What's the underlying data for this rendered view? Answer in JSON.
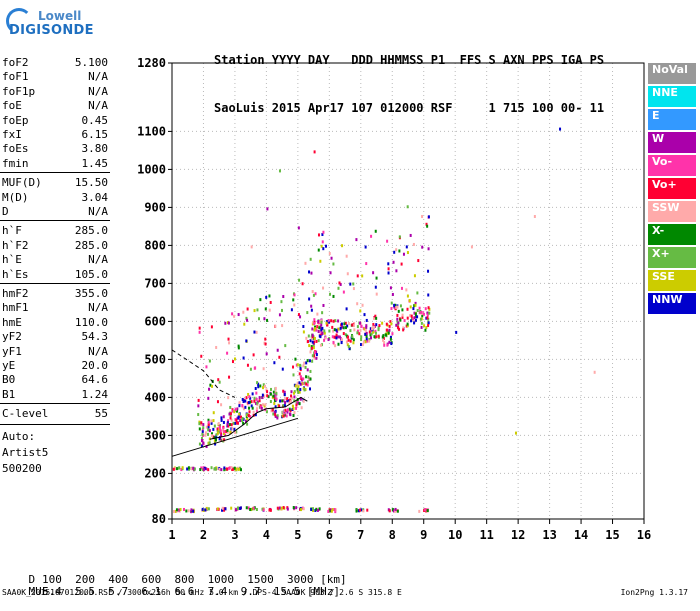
{
  "logo": {
    "line1": "Lowell",
    "line2": "DIGISONDE"
  },
  "header": {
    "line1": "Station YYYY DAY   DDD HHMMSS P1  FFS S AXN PPS IGA PS",
    "line2": "SaoLuis 2015 Apr17 107 012000 RSF     1 715 100 00- 11"
  },
  "params": [
    {
      "label": "foF2",
      "value": "5.100"
    },
    {
      "label": "foF1",
      "value": "N/A"
    },
    {
      "label": "foF1p",
      "value": "N/A"
    },
    {
      "label": "foE",
      "value": "N/A"
    },
    {
      "label": "foEp",
      "value": "0.45"
    },
    {
      "label": "fxI",
      "value": "6.15"
    },
    {
      "label": "foEs",
      "value": "3.80"
    },
    {
      "label": "fmin",
      "value": "1.45"
    },
    {
      "label": "MUF(D)",
      "value": "15.50"
    },
    {
      "label": "M(D)",
      "value": "3.04"
    },
    {
      "label": "D",
      "value": "N/A"
    },
    {
      "label": "h`F",
      "value": "285.0"
    },
    {
      "label": "h`F2",
      "value": "285.0"
    },
    {
      "label": "h`E",
      "value": "N/A"
    },
    {
      "label": "h`Es",
      "value": "105.0"
    },
    {
      "label": "hmF2",
      "value": "355.0"
    },
    {
      "label": "hmF1",
      "value": "N/A"
    },
    {
      "label": "hmE",
      "value": "110.0"
    },
    {
      "label": "yF2",
      "value": "54.3"
    },
    {
      "label": "yF1",
      "value": "N/A"
    },
    {
      "label": "yE",
      "value": "20.0"
    },
    {
      "label": "B0",
      "value": "64.6"
    },
    {
      "label": "B1",
      "value": "1.24"
    },
    {
      "label": "C-level",
      "value": "55"
    }
  ],
  "notes": {
    "auto": "Auto:",
    "artist": "Artist5",
    "version_code": "500200"
  },
  "legend": [
    {
      "label": "NoVal",
      "color": "#999999"
    },
    {
      "label": "NNE",
      "color": "#00e5ee"
    },
    {
      "label": "E",
      "color": "#3399ff"
    },
    {
      "label": "W",
      "color": "#aa00aa"
    },
    {
      "label": "Vo-",
      "color": "#ff33aa"
    },
    {
      "label": "Vo+",
      "color": "#ff0033"
    },
    {
      "label": "SSW",
      "color": "#ffaaaa"
    },
    {
      "label": "X-",
      "color": "#008800"
    },
    {
      "label": "X+",
      "color": "#66bb44"
    },
    {
      "label": "SSE",
      "color": "#cccc00"
    },
    {
      "label": "NNW",
      "color": "#0000cc"
    }
  ],
  "footer": {
    "row1_label": "D",
    "row1_values": "100  200  400  600  800  1000  1500  3000 [km]",
    "row2_label": "MUF",
    "row2_values": "5.4  5.5  5.7  6.1  6.6  7.4  9.7  15.5 [MHz]",
    "file": "SAA0K_2015107012000.RSF / 300fx256h 50 kHz 5.0 km / DPS-4 SAA0K 903 / 2.6 S 315.8 E",
    "version": "Ion2Png 1.3.17"
  },
  "chart_data": {
    "type": "scatter",
    "title": "",
    "xlabel": "",
    "ylabel": "",
    "xlim": [
      1,
      16
    ],
    "ylim": [
      80,
      1280
    ],
    "x_ticks": [
      1,
      2,
      3,
      4,
      5,
      6,
      7,
      8,
      9,
      10,
      11,
      12,
      13,
      14,
      15,
      16
    ],
    "y_ticks": [
      80,
      200,
      300,
      400,
      500,
      600,
      700,
      800,
      900,
      1000,
      1100,
      1280
    ],
    "grid": "dotted",
    "series": [
      {
        "name": "F-trace",
        "points": [
          [
            2.0,
            290
          ],
          [
            2.3,
            295
          ],
          [
            2.6,
            310
          ],
          [
            2.9,
            330
          ],
          [
            3.2,
            350
          ],
          [
            3.5,
            370
          ],
          [
            3.8,
            390
          ],
          [
            4.1,
            380
          ],
          [
            4.4,
            370
          ],
          [
            4.7,
            375
          ],
          [
            5.0,
            395
          ],
          [
            5.2,
            440
          ],
          [
            5.4,
            520
          ],
          [
            5.6,
            560
          ],
          [
            5.8,
            570
          ],
          [
            6.2,
            560
          ],
          [
            6.6,
            550
          ],
          [
            7.0,
            560
          ],
          [
            7.4,
            570
          ],
          [
            7.8,
            560
          ],
          [
            8.2,
            600
          ],
          [
            8.6,
            610
          ],
          [
            9.0,
            600
          ]
        ]
      },
      {
        "name": "Es-trace",
        "points": [
          [
            1.2,
            215
          ],
          [
            1.6,
            215
          ],
          [
            2.0,
            215
          ],
          [
            2.4,
            215
          ],
          [
            2.8,
            215
          ],
          [
            3.0,
            215
          ]
        ]
      },
      {
        "name": "E-trace",
        "points": [
          [
            1.1,
            105
          ],
          [
            1.5,
            105
          ],
          [
            2.0,
            108
          ],
          [
            2.5,
            108
          ],
          [
            3.0,
            110
          ],
          [
            3.5,
            110
          ],
          [
            4.0,
            108
          ],
          [
            4.5,
            110
          ],
          [
            5.0,
            110
          ],
          [
            5.5,
            108
          ],
          [
            6.0,
            105
          ],
          [
            7.0,
            105
          ],
          [
            8.0,
            105
          ],
          [
            9.0,
            105
          ]
        ]
      },
      {
        "name": "scatter-high",
        "points": [
          [
            4.0,
            900
          ],
          [
            4.4,
            1000
          ],
          [
            5.0,
            850
          ],
          [
            5.5,
            1050
          ],
          [
            3.5,
            800
          ],
          [
            10.5,
            800
          ],
          [
            12.5,
            880
          ],
          [
            13.3,
            1110
          ],
          [
            10.0,
            575
          ],
          [
            11.9,
            310
          ],
          [
            14.4,
            470
          ]
        ]
      },
      {
        "name": "profile-solid",
        "points": [
          [
            1.0,
            245
          ],
          [
            2.0,
            270
          ],
          [
            3.0,
            295
          ],
          [
            4.0,
            320
          ],
          [
            5.0,
            345
          ]
        ]
      },
      {
        "name": "profile-dashed",
        "points": [
          [
            1.0,
            525
          ],
          [
            2.0,
            470
          ],
          [
            2.5,
            420
          ],
          [
            3.0,
            400
          ]
        ]
      },
      {
        "name": "profile-curve",
        "points": [
          [
            2.2,
            290
          ],
          [
            2.8,
            300
          ],
          [
            3.3,
            330
          ],
          [
            3.7,
            360
          ],
          [
            4.0,
            370
          ],
          [
            4.6,
            375
          ],
          [
            5.1,
            400
          ],
          [
            5.3,
            390
          ]
        ]
      }
    ]
  }
}
